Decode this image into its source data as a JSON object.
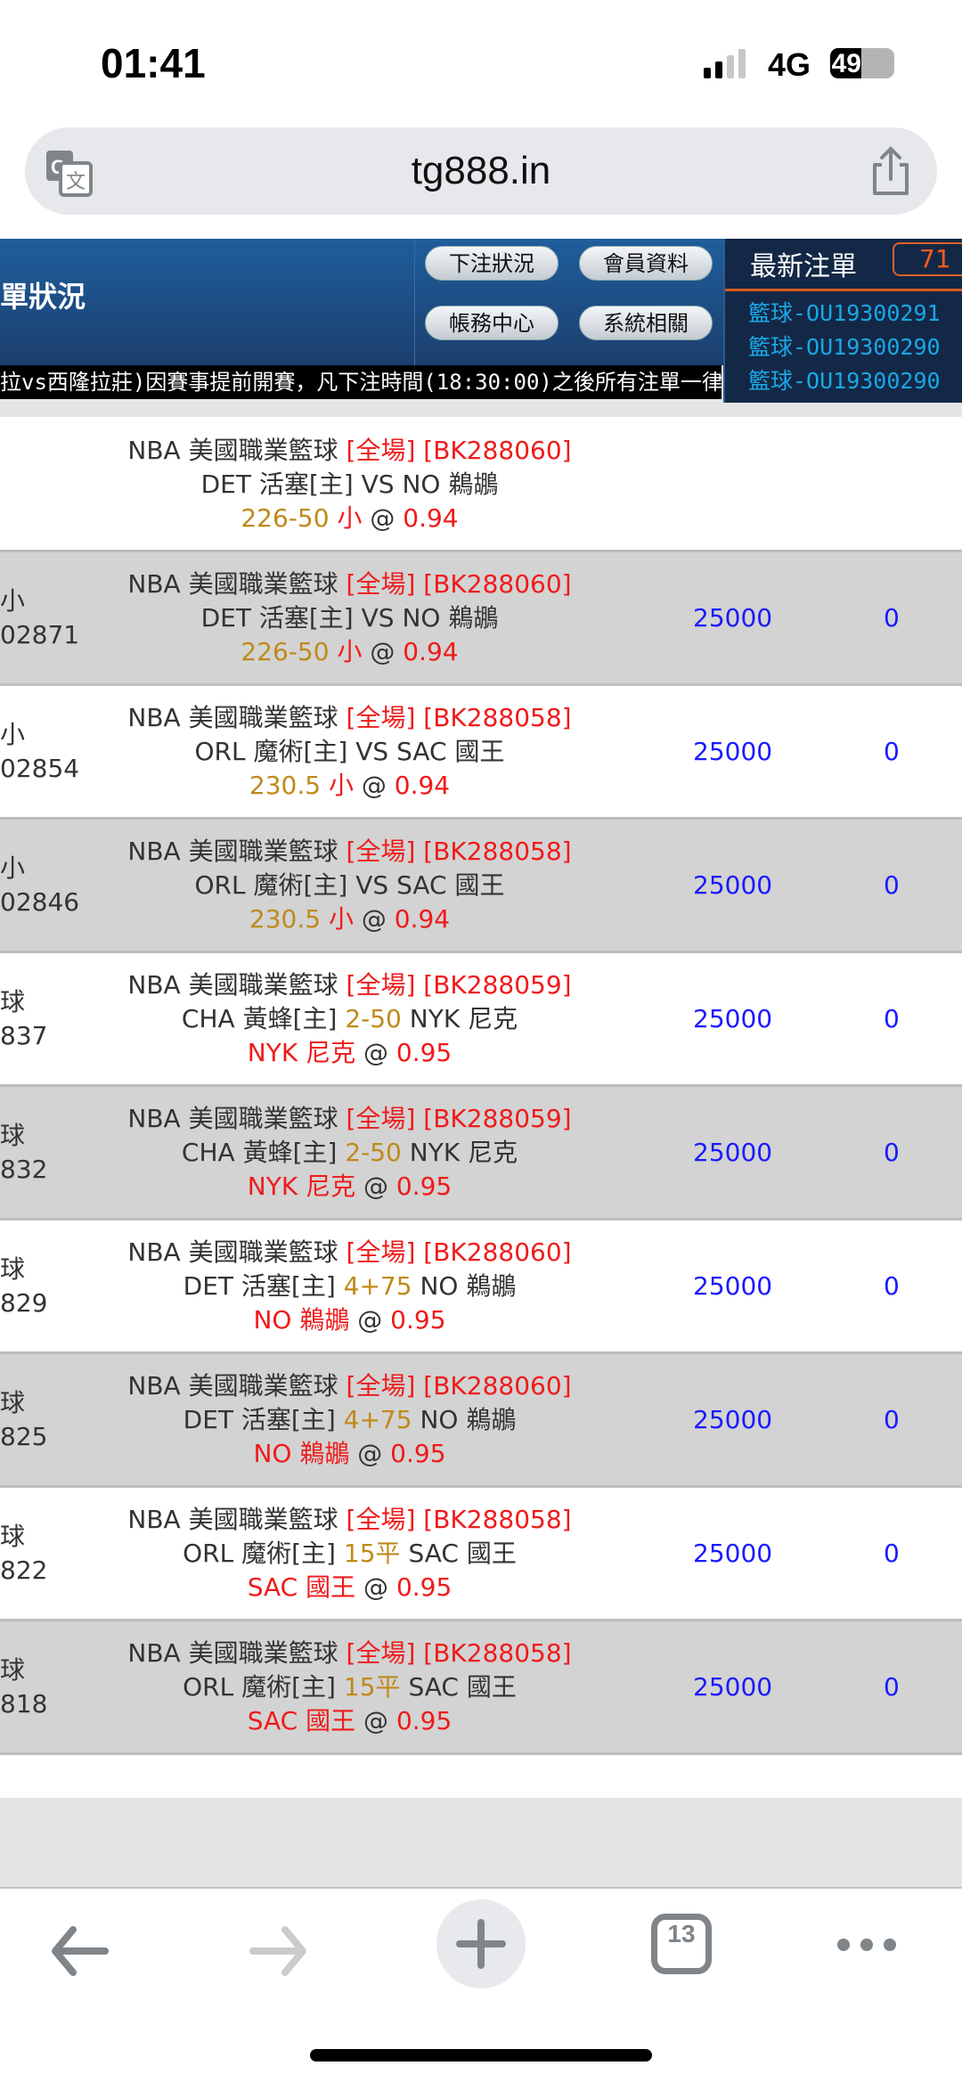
{
  "status_bar": {
    "time": "01:41",
    "network": "4G",
    "battery": "49",
    "signal_bars": 2
  },
  "browser": {
    "url": "tg888.in",
    "tab_count": "13",
    "icons": [
      "translate-icon",
      "share-icon",
      "back-icon",
      "forward-icon",
      "new-tab-icon",
      "tabs-icon",
      "more-icon"
    ]
  },
  "header": {
    "title": "單狀況",
    "buttons": [
      "下注狀況",
      "會員資料",
      "帳務中心",
      "系統相關"
    ],
    "ticker": "拉vs西隆拉莊)因賽事提前開賽，凡下注時間(18:30:00)之後所有注單一律",
    "latest": {
      "title": "最新注單",
      "count": "71",
      "items": [
        "籃球-OU19300291",
        "籃球-OU19300290",
        "籃球-OU19300290"
      ]
    }
  },
  "colors": {
    "header_blue": "#1f5e9c",
    "red": "#f01a1a",
    "gold": "#bf8a1a",
    "blue": "#1a1aff",
    "cyan": "#1aa7e6"
  },
  "rows": [
    {
      "left1": "",
      "left2": "",
      "league": "NBA 美國職業籃球",
      "period": "[全場]",
      "code": "[BK288060]",
      "home": "DET 活塞[主]",
      "mid": "VS",
      "mid_hdp": false,
      "away": "NO 鵜鶘",
      "pick_line": "226-50",
      "pick": "小",
      "at": "@",
      "odds": "0.94",
      "amount": "",
      "result": ""
    },
    {
      "left1": "小",
      "left2": "02871",
      "league": "NBA 美國職業籃球",
      "period": "[全場]",
      "code": "[BK288060]",
      "home": "DET 活塞[主]",
      "mid": "VS",
      "mid_hdp": false,
      "away": "NO 鵜鶘",
      "pick_line": "226-50",
      "pick": "小",
      "at": "@",
      "odds": "0.94",
      "amount": "25000",
      "result": "0"
    },
    {
      "left1": "小",
      "left2": "02854",
      "league": "NBA 美國職業籃球",
      "period": "[全場]",
      "code": "[BK288058]",
      "home": "ORL 魔術[主]",
      "mid": "VS",
      "mid_hdp": false,
      "away": "SAC 國王",
      "pick_line": "230.5",
      "pick": "小",
      "at": "@",
      "odds": "0.94",
      "amount": "25000",
      "result": "0"
    },
    {
      "left1": "小",
      "left2": "02846",
      "league": "NBA 美國職業籃球",
      "period": "[全場]",
      "code": "[BK288058]",
      "home": "ORL 魔術[主]",
      "mid": "VS",
      "mid_hdp": false,
      "away": "SAC 國王",
      "pick_line": "230.5",
      "pick": "小",
      "at": "@",
      "odds": "0.94",
      "amount": "25000",
      "result": "0"
    },
    {
      "left1": "球",
      "left2": "837",
      "league": "NBA 美國職業籃球",
      "period": "[全場]",
      "code": "[BK288059]",
      "home": "CHA 黃蜂[主]",
      "mid": "2-50",
      "mid_hdp": true,
      "away": "NYK 尼克",
      "pick_line": "",
      "pick": "NYK 尼克",
      "at": "@",
      "odds": "0.95",
      "amount": "25000",
      "result": "0"
    },
    {
      "left1": "球",
      "left2": "832",
      "league": "NBA 美國職業籃球",
      "period": "[全場]",
      "code": "[BK288059]",
      "home": "CHA 黃蜂[主]",
      "mid": "2-50",
      "mid_hdp": true,
      "away": "NYK 尼克",
      "pick_line": "",
      "pick": "NYK 尼克",
      "at": "@",
      "odds": "0.95",
      "amount": "25000",
      "result": "0"
    },
    {
      "left1": "球",
      "left2": "829",
      "league": "NBA 美國職業籃球",
      "period": "[全場]",
      "code": "[BK288060]",
      "home": "DET 活塞[主]",
      "mid": "4+75",
      "mid_hdp": true,
      "away": "NO 鵜鶘",
      "pick_line": "",
      "pick": "NO 鵜鶘",
      "at": "@",
      "odds": "0.95",
      "amount": "25000",
      "result": "0"
    },
    {
      "left1": "球",
      "left2": "825",
      "league": "NBA 美國職業籃球",
      "period": "[全場]",
      "code": "[BK288060]",
      "home": "DET 活塞[主]",
      "mid": "4+75",
      "mid_hdp": true,
      "away": "NO 鵜鶘",
      "pick_line": "",
      "pick": "NO 鵜鶘",
      "at": "@",
      "odds": "0.95",
      "amount": "25000",
      "result": "0"
    },
    {
      "left1": "球",
      "left2": "822",
      "league": "NBA 美國職業籃球",
      "period": "[全場]",
      "code": "[BK288058]",
      "home": "ORL 魔術[主]",
      "mid": "15平",
      "mid_hdp": true,
      "away": "SAC 國王",
      "pick_line": "",
      "pick": "SAC 國王",
      "at": "@",
      "odds": "0.95",
      "amount": "25000",
      "result": "0"
    },
    {
      "left1": "球",
      "left2": "818",
      "league": "NBA 美國職業籃球",
      "period": "[全場]",
      "code": "[BK288058]",
      "home": "ORL 魔術[主]",
      "mid": "15平",
      "mid_hdp": true,
      "away": "SAC 國王",
      "pick_line": "",
      "pick": "SAC 國王",
      "at": "@",
      "odds": "0.95",
      "amount": "25000",
      "result": "0"
    }
  ]
}
